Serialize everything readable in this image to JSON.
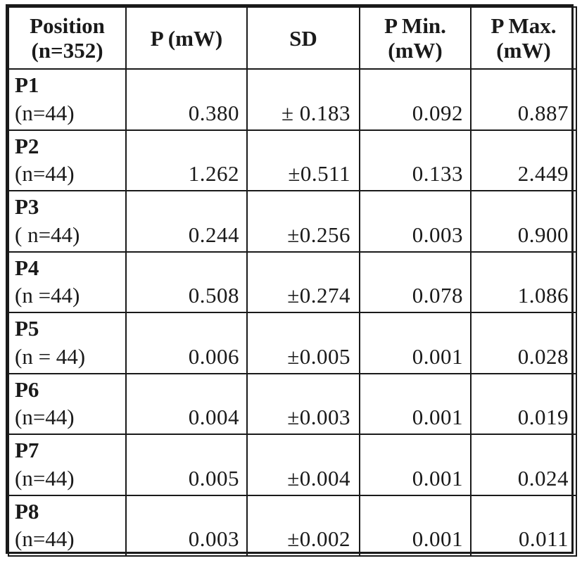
{
  "table": {
    "headers": [
      {
        "line1": "Position",
        "line2": "(n=352)"
      },
      {
        "line1": "P (mW)",
        "line2": ""
      },
      {
        "line1": "SD",
        "line2": ""
      },
      {
        "line1": "P Min.",
        "line2": "(mW)"
      },
      {
        "line1": "P Max.",
        "line2": "(mW)"
      }
    ],
    "rows": [
      {
        "position": "P1",
        "n": "(n=44)",
        "p": "0.380",
        "sd": "± 0.183",
        "pmin": "0.092",
        "pmax": "0.887"
      },
      {
        "position": "P2",
        "n": "(n=44)",
        "p": "1.262",
        "sd": "±0.511",
        "pmin": "0.133",
        "pmax": "2.449"
      },
      {
        "position": "P3",
        "n": "( n=44)",
        "p": "0.244",
        "sd": "±0.256",
        "pmin": "0.003",
        "pmax": "0.900"
      },
      {
        "position": "P4",
        "n": "(n =44)",
        "p": "0.508",
        "sd": "±0.274",
        "pmin": "0.078",
        "pmax": "1.086"
      },
      {
        "position": "P5",
        "n": "(n = 44)",
        "p": "0.006",
        "sd": "±0.005",
        "pmin": "0.001",
        "pmax": "0.028"
      },
      {
        "position": "P6",
        "n": "(n=44)",
        "p": "0.004",
        "sd": "±0.003",
        "pmin": "0.001",
        "pmax": "0.019"
      },
      {
        "position": "P7",
        "n": "(n=44)",
        "p": "0.005",
        "sd": "±0.004",
        "pmin": "0.001",
        "pmax": "0.024"
      },
      {
        "position": "P8",
        "n": "(n=44)",
        "p": "0.003",
        "sd": "±0.002",
        "pmin": "0.001",
        "pmax": "0.011"
      }
    ]
  }
}
